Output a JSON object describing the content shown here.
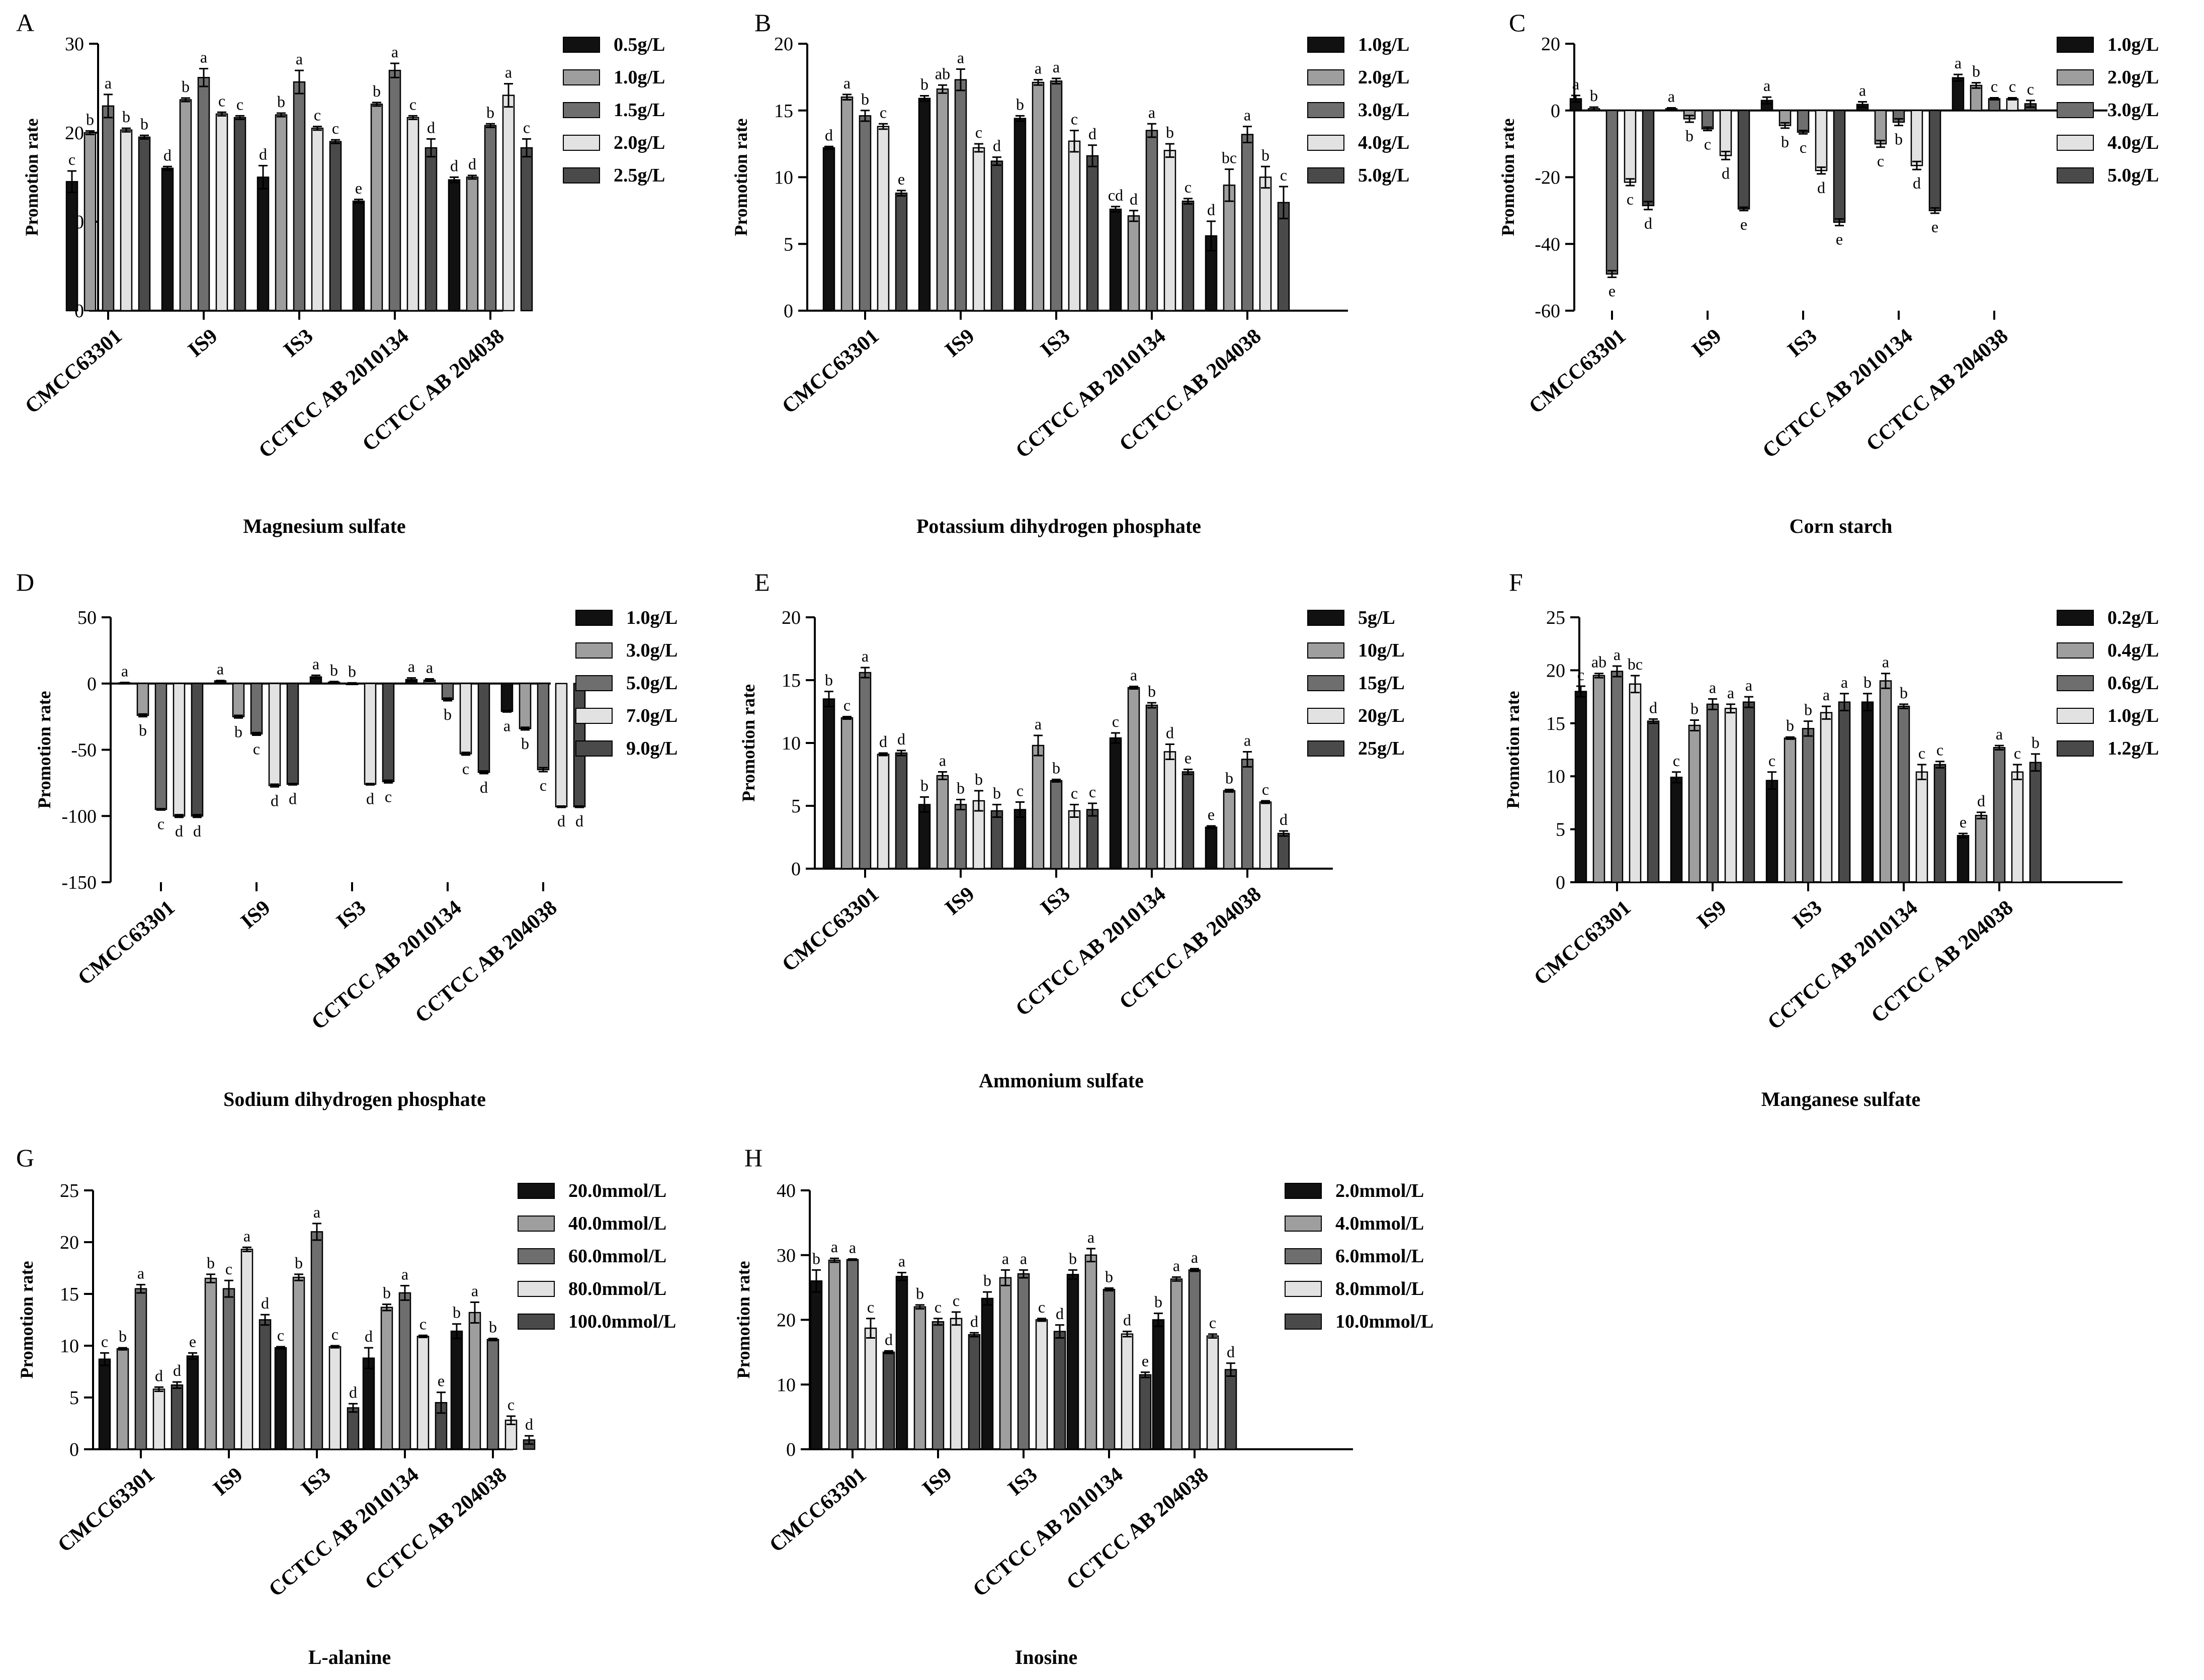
{
  "figure": {
    "series_colors": [
      "#111111",
      "#9e9e9e",
      "#6e6e6e",
      "#e2e2e2",
      "#4a4a4a"
    ]
  },
  "chart_data": [
    {
      "id": "A",
      "type": "bar",
      "title": "Magnesium sulfate",
      "ylabel": "Promotion rate",
      "ylim": [
        0,
        30
      ],
      "yticks": [
        0,
        10,
        20,
        30
      ],
      "categories": [
        "CMCC63301",
        "IS9",
        "IS3",
        "CCTCC AB 2010134",
        "CCTCC AB 204038"
      ],
      "series": [
        {
          "name": "0.5g/L",
          "values": [
            14.5,
            16.0,
            15.0,
            12.3,
            14.7
          ],
          "errors": [
            1.2,
            0.2,
            1.3,
            0.2,
            0.3
          ],
          "letters": [
            "c",
            "d",
            "d",
            "e",
            "d"
          ]
        },
        {
          "name": "1.0g/L",
          "values": [
            20.0,
            23.7,
            22.0,
            23.2,
            15.0
          ],
          "errors": [
            0.2,
            0.2,
            0.2,
            0.2,
            0.2
          ],
          "letters": [
            "b",
            "b",
            "b",
            "b",
            "d"
          ]
        },
        {
          "name": "1.5g/L",
          "values": [
            23.0,
            26.2,
            25.7,
            27.0,
            20.8
          ],
          "errors": [
            1.3,
            1.0,
            1.3,
            0.8,
            0.2
          ],
          "letters": [
            "a",
            "a",
            "a",
            "a",
            "b"
          ]
        },
        {
          "name": "2.0g/L",
          "values": [
            20.3,
            22.1,
            20.5,
            21.7,
            24.2
          ],
          "errors": [
            0.2,
            0.2,
            0.2,
            0.2,
            1.3
          ],
          "letters": [
            "b",
            "c",
            "c",
            "c",
            "a"
          ]
        },
        {
          "name": "2.5g/L",
          "values": [
            19.5,
            21.7,
            19.0,
            18.3,
            18.3
          ],
          "errors": [
            0.2,
            0.2,
            0.2,
            1.0,
            1.0
          ],
          "letters": [
            "b",
            "c",
            "c",
            "d",
            "c"
          ]
        }
      ]
    },
    {
      "id": "B",
      "type": "bar",
      "title": "Potassium dihydrogen phosphate",
      "ylabel": "Promotion rate",
      "ylim": [
        0,
        20
      ],
      "yticks": [
        0,
        5,
        10,
        15,
        20
      ],
      "categories": [
        "CMCC63301",
        "IS9",
        "IS3",
        "CCTCC AB 2010134",
        "CCTCC AB 204038"
      ],
      "series": [
        {
          "name": "1.0g/L",
          "values": [
            12.2,
            15.9,
            14.4,
            7.6,
            5.6
          ],
          "errors": [
            0.1,
            0.2,
            0.2,
            0.2,
            1.1
          ],
          "letters": [
            "d",
            "b",
            "b",
            "cd",
            "d"
          ]
        },
        {
          "name": "2.0g/L",
          "values": [
            16.0,
            16.6,
            17.1,
            7.1,
            9.4
          ],
          "errors": [
            0.2,
            0.3,
            0.2,
            0.4,
            1.2
          ],
          "letters": [
            "a",
            "ab",
            "a",
            "d",
            "bc"
          ]
        },
        {
          "name": "3.0g/L",
          "values": [
            14.6,
            17.3,
            17.2,
            13.5,
            13.2
          ],
          "errors": [
            0.4,
            0.8,
            0.2,
            0.5,
            0.6
          ],
          "letters": [
            "b",
            "a",
            "a",
            "a",
            "a"
          ]
        },
        {
          "name": "4.0g/L",
          "values": [
            13.8,
            12.2,
            12.7,
            12.0,
            10.0
          ],
          "errors": [
            0.2,
            0.3,
            0.8,
            0.5,
            0.8
          ],
          "letters": [
            "c",
            "c",
            "c",
            "b",
            "b"
          ]
        },
        {
          "name": "5.0g/L",
          "values": [
            8.8,
            11.2,
            11.6,
            8.2,
            8.1
          ],
          "errors": [
            0.2,
            0.3,
            0.8,
            0.2,
            1.2
          ],
          "letters": [
            "e",
            "d",
            "d",
            "c",
            "c"
          ]
        }
      ]
    },
    {
      "id": "C",
      "type": "bar",
      "title": "Corn starch",
      "ylabel": "Promotion rate",
      "ylim": [
        -60,
        20
      ],
      "yticks": [
        -60,
        -40,
        -20,
        0,
        20
      ],
      "categories": [
        "CMCC63301",
        "IS9",
        "IS3",
        "CCTCC AB 2010134",
        "CCTCC AB 204038"
      ],
      "series": [
        {
          "name": "1.0g/L",
          "values": [
            3.5,
            0.5,
            3.0,
            1.8,
            9.8
          ],
          "errors": [
            1.0,
            0.3,
            1.0,
            0.8,
            1.0
          ],
          "letters": [
            "a",
            "a",
            "a",
            "a",
            "a"
          ]
        },
        {
          "name": "2.0g/L",
          "values": [
            0.5,
            -2.5,
            -4.5,
            -10.0,
            7.5
          ],
          "errors": [
            0.5,
            1.0,
            0.8,
            1.0,
            0.8
          ],
          "letters": [
            "b",
            "b",
            "b",
            "c",
            "b"
          ]
        },
        {
          "name": "3.0g/L",
          "values": [
            -49.0,
            -5.5,
            -6.5,
            -3.5,
            3.5
          ],
          "errors": [
            1.0,
            0.5,
            0.5,
            1.0,
            0.3
          ],
          "letters": [
            "e",
            "c",
            "c",
            "b",
            "c"
          ]
        },
        {
          "name": "4.0g/L",
          "values": [
            -21.5,
            -13.5,
            -18.0,
            -16.5,
            3.5
          ],
          "errors": [
            1.0,
            1.2,
            1.0,
            1.2,
            0.3
          ],
          "letters": [
            "c",
            "d",
            "d",
            "d",
            "c"
          ]
        },
        {
          "name": "5.0g/L",
          "values": [
            -28.5,
            -29.5,
            -33.5,
            -30.0,
            2.0
          ],
          "errors": [
            1.2,
            0.5,
            1.0,
            0.8,
            1.0
          ],
          "letters": [
            "d",
            "e",
            "e",
            "e",
            "c"
          ]
        }
      ]
    },
    {
      "id": "D",
      "type": "bar",
      "title": "Sodium dihydrogen phosphate",
      "ylabel": "Promotion rate",
      "ylim": [
        -150,
        50
      ],
      "yticks": [
        -150,
        -100,
        -50,
        0,
        50
      ],
      "categories": [
        "CMCC63301",
        "IS9",
        "IS3",
        "CCTCC AB 2010134",
        "CCTCC AB 204038"
      ],
      "series": [
        {
          "name": "1.0g/L",
          "values": [
            0.5,
            2.0,
            5.0,
            3.0,
            -21.0
          ],
          "errors": [
            0.3,
            0.3,
            1.2,
            1.2,
            0.5
          ],
          "letters": [
            "a",
            "a",
            "a",
            "a",
            "a"
          ]
        },
        {
          "name": "3.0g/L",
          "values": [
            -24.0,
            -25.0,
            1.0,
            2.5,
            -34.0
          ],
          "errors": [
            1.0,
            1.0,
            0.5,
            1.0,
            1.0
          ],
          "letters": [
            "b",
            "b",
            "b",
            "a",
            "b"
          ]
        },
        {
          "name": "5.0g/L",
          "values": [
            -95.0,
            -38.0,
            0.0,
            -12.0,
            -65.0
          ],
          "errors": [
            0.5,
            1.0,
            0.5,
            1.0,
            1.5
          ],
          "letters": [
            "c",
            "c",
            "b",
            "b",
            "c"
          ]
        },
        {
          "name": "7.0g/L",
          "values": [
            -100.0,
            -77.0,
            -76.0,
            -53.0,
            -93.0
          ],
          "errors": [
            1.0,
            1.0,
            0.5,
            1.0,
            0.5
          ],
          "letters": [
            "d",
            "d",
            "d",
            "c",
            "d"
          ]
        },
        {
          "name": "9.0g/L",
          "values": [
            -100.0,
            -76.0,
            -74.0,
            -67.0,
            -93.0
          ],
          "errors": [
            1.0,
            0.5,
            1.0,
            1.0,
            0.5
          ],
          "letters": [
            "d",
            "d",
            "c",
            "d",
            "d"
          ]
        }
      ]
    },
    {
      "id": "E",
      "type": "bar",
      "title": "Ammonium sulfate",
      "ylabel": "Promotion rate",
      "ylim": [
        0,
        20
      ],
      "yticks": [
        0,
        5,
        10,
        15,
        20
      ],
      "categories": [
        "CMCC63301",
        "IS9",
        "IS3",
        "CCTCC AB 2010134",
        "CCTCC AB 204038"
      ],
      "series": [
        {
          "name": "5g/L",
          "values": [
            13.5,
            5.1,
            4.7,
            10.4,
            3.3
          ],
          "errors": [
            0.6,
            0.6,
            0.6,
            0.4,
            0.1
          ],
          "letters": [
            "b",
            "b",
            "c",
            "c",
            "e"
          ]
        },
        {
          "name": "10g/L",
          "values": [
            12.0,
            7.4,
            9.8,
            14.4,
            6.2
          ],
          "errors": [
            0.1,
            0.3,
            0.8,
            0.1,
            0.1
          ],
          "letters": [
            "c",
            "a",
            "a",
            "a",
            "b"
          ]
        },
        {
          "name": "15g/L",
          "values": [
            15.6,
            5.1,
            7.0,
            13.0,
            8.7
          ],
          "errors": [
            0.4,
            0.4,
            0.1,
            0.2,
            0.6
          ],
          "letters": [
            "a",
            "b",
            "b",
            "b",
            "a"
          ]
        },
        {
          "name": "20g/L",
          "values": [
            9.1,
            5.4,
            4.6,
            9.3,
            5.3
          ],
          "errors": [
            0.1,
            0.8,
            0.5,
            0.6,
            0.1
          ],
          "letters": [
            "d",
            "b",
            "c",
            "d",
            "c"
          ]
        },
        {
          "name": "25g/L",
          "values": [
            9.2,
            4.6,
            4.7,
            7.7,
            2.8
          ],
          "errors": [
            0.2,
            0.5,
            0.5,
            0.2,
            0.2
          ],
          "letters": [
            "d",
            "b",
            "c",
            "e",
            "d"
          ]
        }
      ]
    },
    {
      "id": "F",
      "type": "bar",
      "title": "Manganese sulfate",
      "ylabel": "Promotion rate",
      "ylim": [
        0,
        25
      ],
      "yticks": [
        0,
        5,
        10,
        15,
        20,
        25
      ],
      "categories": [
        "CMCC63301",
        "IS9",
        "IS3",
        "CCTCC AB 2010134",
        "CCTCC AB 204038"
      ],
      "series": [
        {
          "name": "0.2g/L",
          "values": [
            18.0,
            9.9,
            9.6,
            17.0,
            4.4
          ],
          "errors": [
            0.5,
            0.5,
            0.8,
            0.8,
            0.2
          ],
          "letters": [
            "c",
            "c",
            "c",
            "b",
            "e"
          ]
        },
        {
          "name": "0.4g/L",
          "values": [
            19.5,
            14.8,
            13.6,
            19.0,
            6.3
          ],
          "errors": [
            0.2,
            0.5,
            0.1,
            0.7,
            0.3
          ],
          "letters": [
            "ab",
            "b",
            "b",
            "a",
            "d"
          ]
        },
        {
          "name": "0.6g/L",
          "values": [
            19.9,
            16.8,
            14.5,
            16.6,
            12.7
          ],
          "errors": [
            0.5,
            0.5,
            0.7,
            0.2,
            0.2
          ],
          "letters": [
            "a",
            "a",
            "b",
            "b",
            "a"
          ]
        },
        {
          "name": "1.0g/L",
          "values": [
            18.7,
            16.4,
            16.0,
            10.4,
            10.4
          ],
          "errors": [
            0.8,
            0.4,
            0.6,
            0.7,
            0.7
          ],
          "letters": [
            "bc",
            "a",
            "a",
            "c",
            "c"
          ]
        },
        {
          "name": "1.2g/L",
          "values": [
            15.2,
            17.0,
            17.0,
            11.1,
            11.3
          ],
          "errors": [
            0.2,
            0.5,
            0.8,
            0.3,
            0.8
          ],
          "letters": [
            "d",
            "a",
            "a",
            "c",
            "b"
          ]
        }
      ]
    },
    {
      "id": "G",
      "type": "bar",
      "title": "L-alanine",
      "ylabel": "Promotion rate",
      "ylim": [
        0,
        25
      ],
      "yticks": [
        0,
        5,
        10,
        15,
        20,
        25
      ],
      "categories": [
        "CMCC63301",
        "IS9",
        "IS3",
        "CCTCC AB 2010134",
        "CCTCC AB 204038"
      ],
      "series": [
        {
          "name": "20.0mmol/L",
          "values": [
            8.7,
            9.0,
            9.8,
            8.8,
            11.4
          ],
          "errors": [
            0.6,
            0.3,
            0.1,
            1.0,
            0.7
          ],
          "letters": [
            "c",
            "e",
            "c",
            "d",
            "b"
          ]
        },
        {
          "name": "40.0mmol/L",
          "values": [
            9.7,
            16.5,
            16.6,
            13.7,
            13.2
          ],
          "errors": [
            0.1,
            0.4,
            0.3,
            0.3,
            1.0
          ],
          "letters": [
            "b",
            "b",
            "b",
            "b",
            "a"
          ]
        },
        {
          "name": "60.0mmol/L",
          "values": [
            15.5,
            15.5,
            21.0,
            15.1,
            10.6
          ],
          "errors": [
            0.4,
            0.8,
            0.8,
            0.7,
            0.1
          ],
          "letters": [
            "a",
            "c",
            "a",
            "a",
            "b"
          ]
        },
        {
          "name": "80.0mmol/L",
          "values": [
            5.8,
            19.3,
            9.9,
            10.9,
            2.8
          ],
          "errors": [
            0.2,
            0.2,
            0.1,
            0.1,
            0.4
          ],
          "letters": [
            "d",
            "a",
            "c",
            "c",
            "c"
          ]
        },
        {
          "name": "100.0mmol/L",
          "values": [
            6.2,
            12.5,
            4.0,
            4.5,
            0.9
          ],
          "errors": [
            0.3,
            0.5,
            0.4,
            1.0,
            0.4
          ],
          "letters": [
            "d",
            "d",
            "d",
            "e",
            "d"
          ]
        }
      ]
    },
    {
      "id": "H",
      "type": "bar",
      "title": "Inosine",
      "ylabel": "Promotion rate",
      "ylim": [
        0,
        40
      ],
      "yticks": [
        0,
        10,
        20,
        30,
        40
      ],
      "categories": [
        "CMCC63301",
        "IS9",
        "IS3",
        "CCTCC AB 2010134",
        "CCTCC AB 204038"
      ],
      "series": [
        {
          "name": "2.0mmol/L",
          "values": [
            26.0,
            26.7,
            23.3,
            27.0,
            20.0
          ],
          "errors": [
            1.7,
            0.6,
            1.0,
            0.7,
            1.0
          ],
          "letters": [
            "b",
            "a",
            "b",
            "b",
            "b"
          ]
        },
        {
          "name": "4.0mmol/L",
          "values": [
            29.2,
            22.0,
            26.5,
            30.0,
            26.3
          ],
          "errors": [
            0.3,
            0.3,
            1.2,
            1.0,
            0.3
          ],
          "letters": [
            "a",
            "b",
            "a",
            "a",
            "a"
          ]
        },
        {
          "name": "6.0mmol/L",
          "values": [
            29.3,
            19.7,
            27.1,
            24.7,
            27.7
          ],
          "errors": [
            0.1,
            0.5,
            0.6,
            0.2,
            0.2
          ],
          "letters": [
            "a",
            "c",
            "a",
            "b",
            "a"
          ]
        },
        {
          "name": "8.0mmol/L",
          "values": [
            18.7,
            20.2,
            20.0,
            17.8,
            17.5
          ],
          "errors": [
            1.5,
            1.0,
            0.2,
            0.4,
            0.3
          ],
          "letters": [
            "c",
            "c",
            "c",
            "d",
            "c"
          ]
        },
        {
          "name": "10.0mmol/L",
          "values": [
            15.0,
            17.7,
            18.2,
            11.5,
            12.3
          ],
          "errors": [
            0.2,
            0.3,
            1.0,
            0.4,
            1.0
          ],
          "letters": [
            "d",
            "d",
            "d",
            "e",
            "d"
          ]
        }
      ]
    }
  ]
}
